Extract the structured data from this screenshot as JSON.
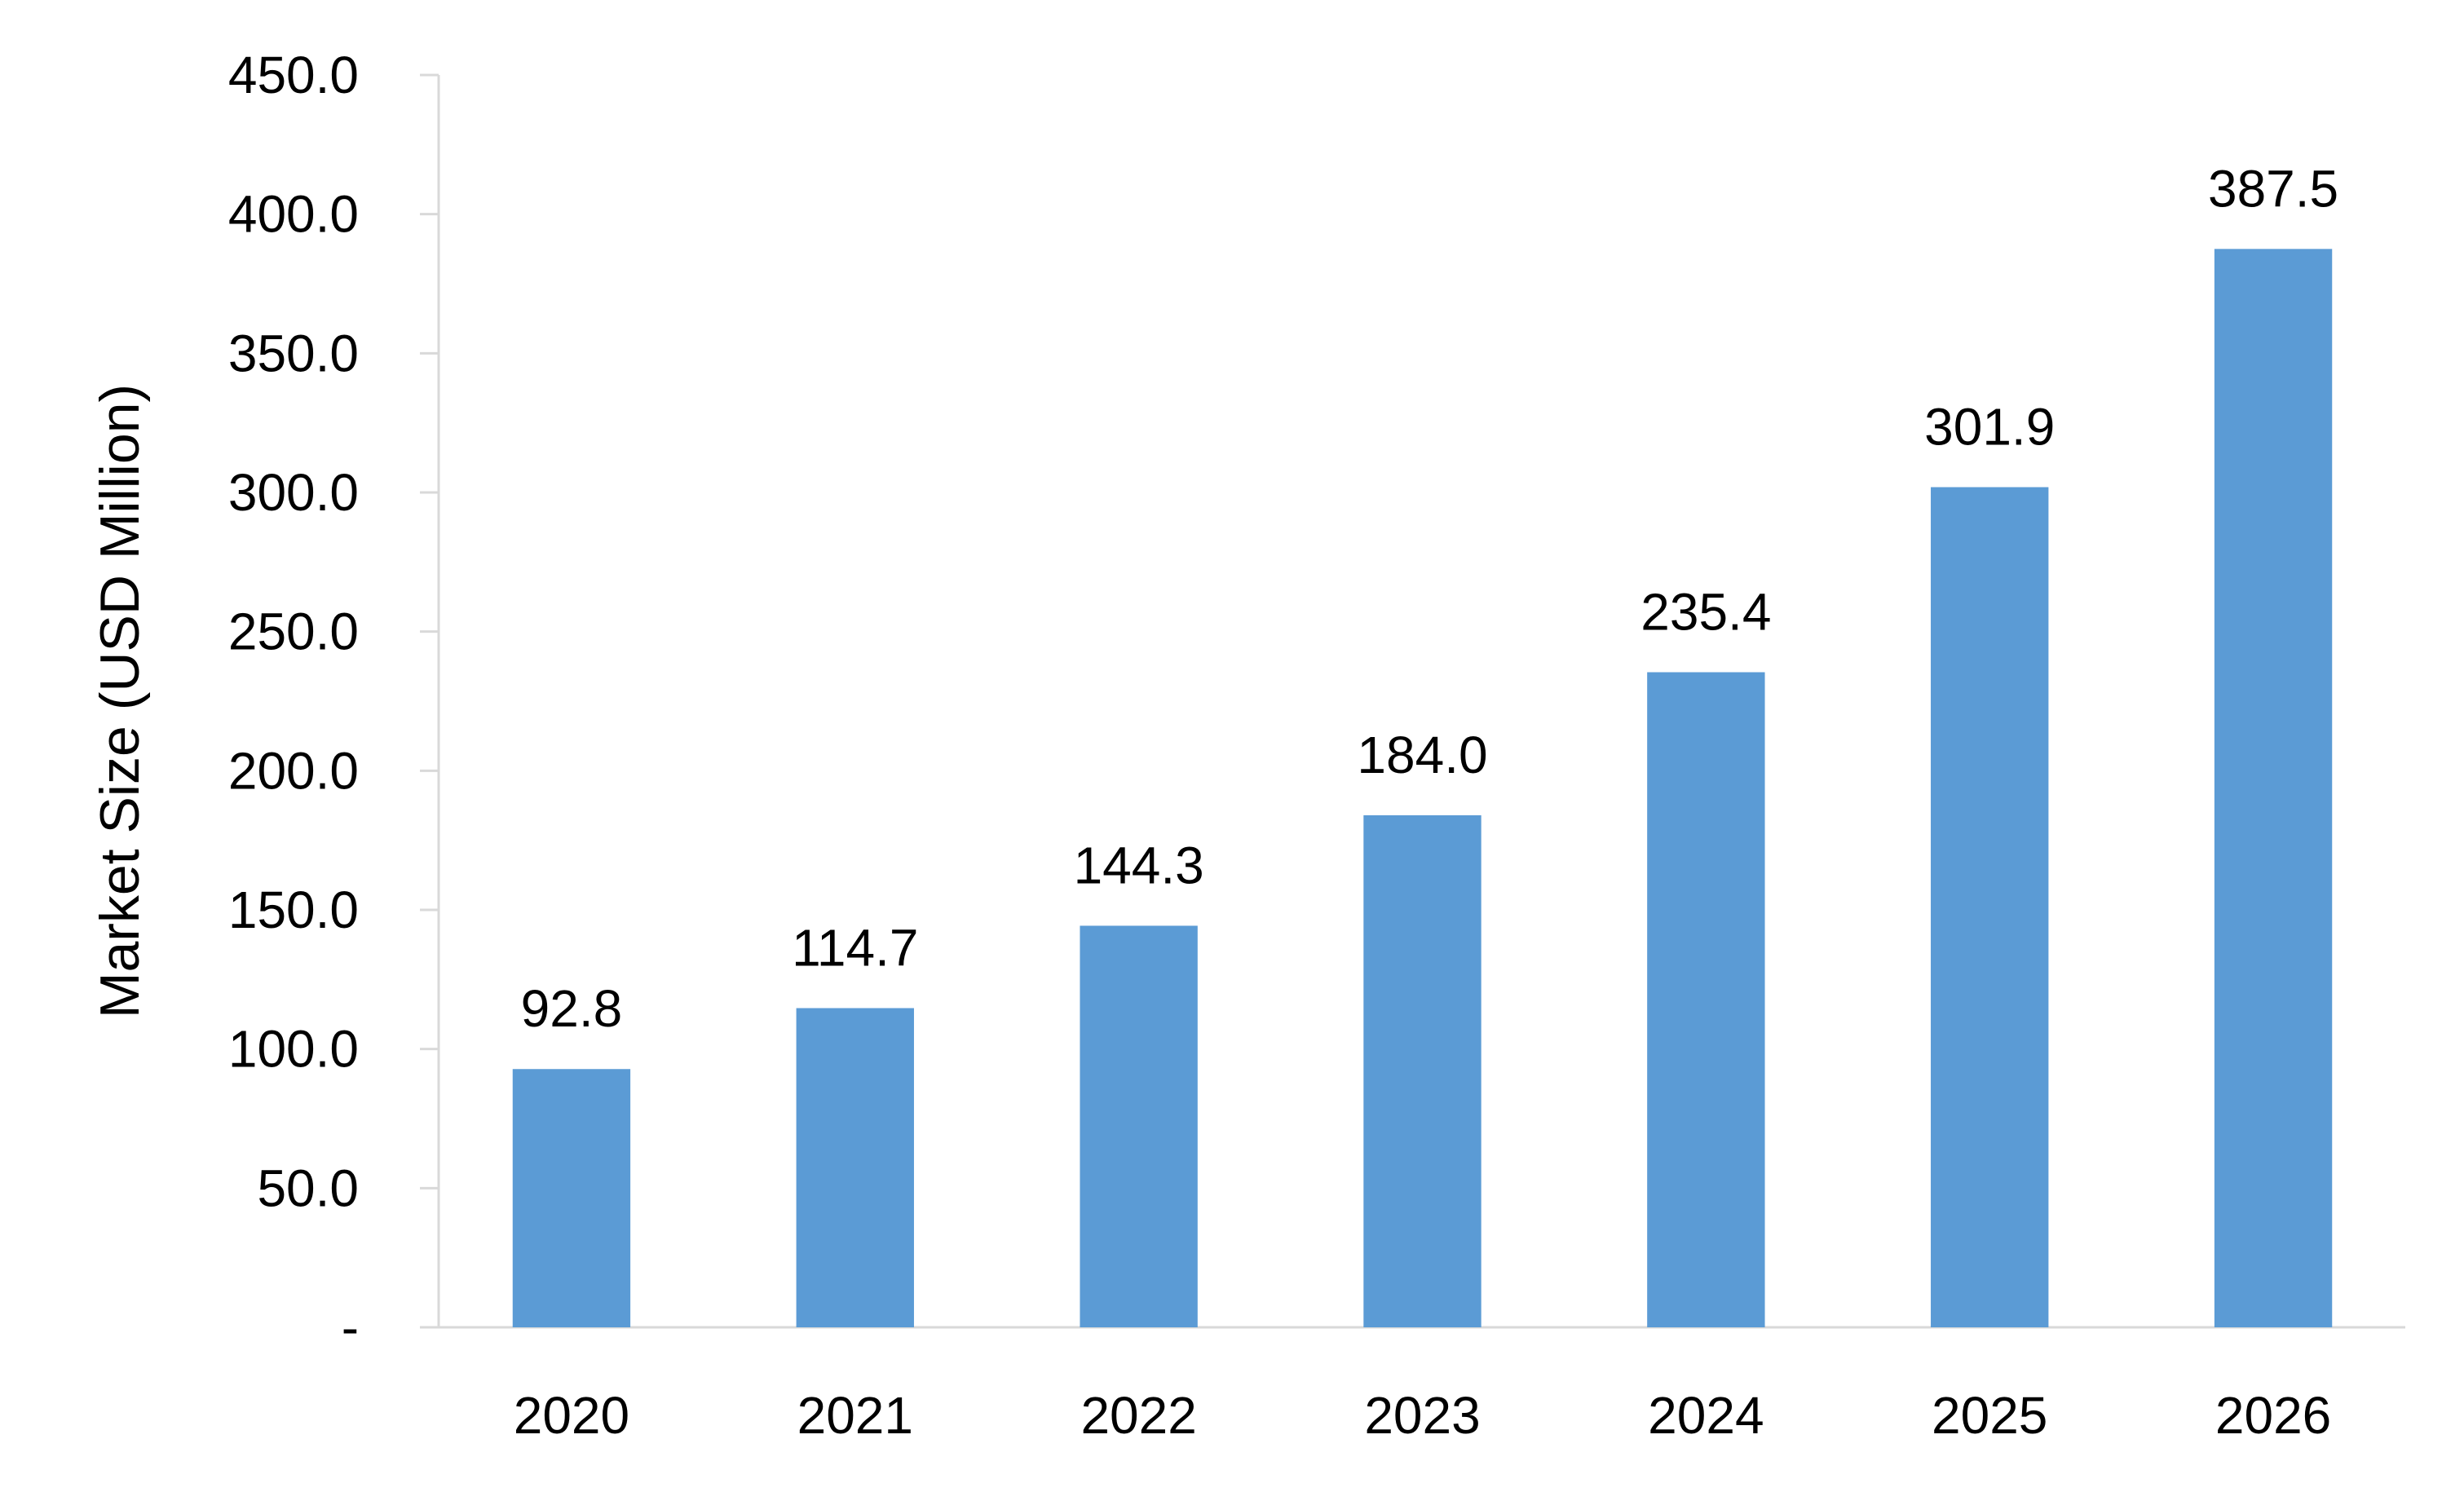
{
  "chart_data": {
    "type": "bar",
    "title": "",
    "xlabel": "",
    "ylabel": "Market Size (USD Million)",
    "categories": [
      "2020",
      "2021",
      "2022",
      "2023",
      "2024",
      "2025",
      "2026"
    ],
    "values": [
      92.8,
      114.7,
      144.3,
      184.0,
      235.4,
      301.9,
      387.5
    ],
    "data_labels": [
      "92.8",
      "114.7",
      "144.3",
      "184.0",
      "235.4",
      "301.9",
      "387.5"
    ],
    "ylim": [
      0,
      450
    ],
    "yticks": [
      0,
      50,
      100,
      150,
      200,
      250,
      300,
      350,
      400,
      450
    ],
    "ytick_labels": [
      "-",
      "50.0",
      "100.0",
      "150.0",
      "200.0",
      "250.0",
      "300.0",
      "350.0",
      "400.0",
      "450.0"
    ],
    "grid": false,
    "legend": "none",
    "colors": {
      "bar": "#5B9BD5",
      "axis": "#D9D9D9",
      "text": "#000000"
    }
  }
}
